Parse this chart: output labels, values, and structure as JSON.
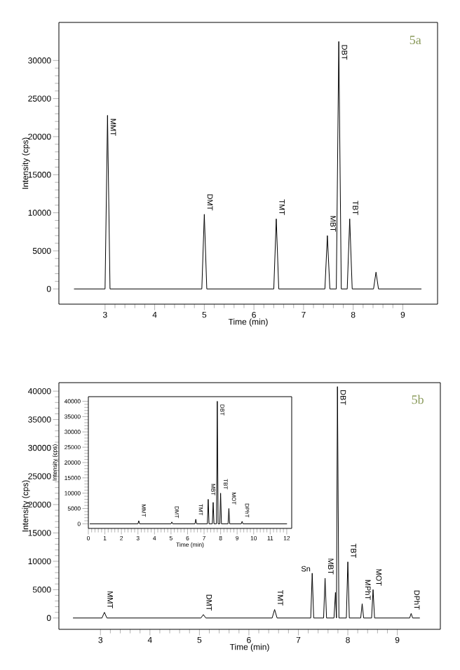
{
  "chart_data": [
    {
      "type": "line",
      "color": "#000000",
      "xlabel": "Time (min)",
      "ylabel": "Intensity (cps)",
      "xlim": [
        2.07,
        9.7
      ],
      "ylim": [
        -2000,
        35000
      ],
      "xticks": [
        3,
        4,
        5,
        6,
        7,
        8,
        9
      ],
      "yticks": [
        0,
        5000,
        10000,
        15000,
        20000,
        25000,
        30000
      ],
      "x": [
        2.38,
        3.0,
        3.05,
        3.1,
        4.95,
        5.0,
        5.05,
        6.4,
        6.45,
        6.5,
        7.43,
        7.48,
        7.53,
        7.66,
        7.71,
        7.76,
        7.88,
        7.93,
        7.98,
        8.41,
        8.46,
        8.51,
        9.37
      ],
      "values": [
        0,
        0,
        22800,
        0,
        0,
        9800,
        0,
        0,
        9200,
        0,
        0,
        7000,
        0,
        0,
        32500,
        0,
        0,
        9200,
        0,
        0,
        2200,
        0,
        0
      ],
      "annotations": [
        "5a",
        {
          "text": "MMT",
          "x": 3.05,
          "y": 22800
        },
        {
          "text": "DMT",
          "x": 5.0,
          "y": 9800
        },
        {
          "text": "TMT",
          "x": 6.45,
          "y": 9200
        },
        {
          "text": "MBT",
          "x": 7.48,
          "y": 7000
        },
        {
          "text": "DBT",
          "x": 7.71,
          "y": 32500
        },
        {
          "text": "TBT",
          "x": 7.93,
          "y": 9200
        }
      ]
    },
    {
      "type": "line",
      "color": "#000000",
      "xlabel": "Time (min)",
      "ylabel": "Intensity (cps)",
      "xlim": [
        2.16,
        9.87
      ],
      "ylim": [
        -2000,
        41500
      ],
      "xticks": [
        3,
        4,
        5,
        6,
        7,
        8,
        9
      ],
      "yticks": [
        0,
        5000,
        10000,
        15000,
        20000,
        25000,
        30000,
        35000,
        40000
      ],
      "x": [
        2.45,
        3.03,
        3.08,
        3.13,
        5.03,
        5.08,
        5.13,
        6.47,
        6.52,
        6.57,
        7.25,
        7.28,
        7.31,
        7.51,
        7.54,
        7.57,
        7.72,
        7.75,
        7.77,
        7.79,
        7.82,
        7.97,
        8.0,
        8.03,
        8.26,
        8.29,
        8.32,
        8.48,
        8.51,
        8.54,
        9.25,
        9.28,
        9.31,
        9.45
      ],
      "values": [
        0,
        0,
        1000,
        0,
        0,
        600,
        0,
        0,
        1500,
        0,
        0,
        7900,
        0,
        0,
        7000,
        0,
        0,
        4500,
        0,
        40800,
        0,
        0,
        9900,
        0,
        0,
        2500,
        0,
        0,
        5000,
        0,
        0,
        800,
        0,
        0
      ],
      "annotations": [
        "5b",
        {
          "text": "MMT",
          "x": 3.08,
          "y": 1000
        },
        {
          "text": "DMT",
          "x": 5.08,
          "y": 600
        },
        {
          "text": "TMT",
          "x": 6.52,
          "y": 1500
        },
        {
          "text": "Sn",
          "x": 7.28,
          "y": 7900
        },
        {
          "text": "MBT",
          "x": 7.54,
          "y": 7000
        },
        {
          "text": "DBT",
          "x": 7.79,
          "y": 40800
        },
        {
          "text": "TBT",
          "x": 8.0,
          "y": 9900
        },
        {
          "text": "MPhT",
          "x": 8.29,
          "y": 2500
        },
        {
          "text": "MOT",
          "x": 8.51,
          "y": 5000
        },
        {
          "text": "DPhT",
          "x": 9.28,
          "y": 800
        }
      ]
    },
    {
      "type": "line",
      "color": "#000000",
      "xlabel": "Time (min)",
      "ylabel": "Intensity (cps)",
      "xlim": [
        0,
        12.3
      ],
      "ylim": [
        -1500,
        41500
      ],
      "xticks": [
        0,
        1,
        2,
        3,
        4,
        5,
        6,
        7,
        8,
        9,
        10,
        11,
        12
      ],
      "yticks": [
        0,
        5000,
        10000,
        15000,
        20000,
        25000,
        30000,
        35000,
        40000
      ],
      "x": [
        0.1,
        3.0,
        3.05,
        3.1,
        5.0,
        5.05,
        5.1,
        6.45,
        6.5,
        6.55,
        7.2,
        7.25,
        7.3,
        7.5,
        7.55,
        7.6,
        7.75,
        7.8,
        7.85,
        7.95,
        8.0,
        8.05,
        8.45,
        8.5,
        8.55,
        9.25,
        9.3,
        9.35,
        12.0
      ],
      "values": [
        0,
        0,
        1000,
        0,
        0,
        600,
        0,
        0,
        1500,
        0,
        0,
        8000,
        0,
        0,
        7000,
        0,
        0,
        40000,
        0,
        0,
        10000,
        0,
        0,
        5000,
        0,
        0,
        800,
        0,
        0
      ],
      "annotations": [
        {
          "text": "MMT",
          "x": 3.05,
          "y": 1000
        },
        {
          "text": "DMT",
          "x": 5.05,
          "y": 600
        },
        {
          "text": "TMT",
          "x": 6.5,
          "y": 1500
        },
        {
          "text": "MBT",
          "x": 7.25,
          "y": 8000
        },
        {
          "text": "DBT",
          "x": 7.8,
          "y": 40000
        },
        {
          "text": "TBT",
          "x": 8.0,
          "y": 10000
        },
        {
          "text": "MOT",
          "x": 8.5,
          "y": 5000
        },
        {
          "text": "DPhT",
          "x": 9.3,
          "y": 800
        }
      ]
    }
  ]
}
